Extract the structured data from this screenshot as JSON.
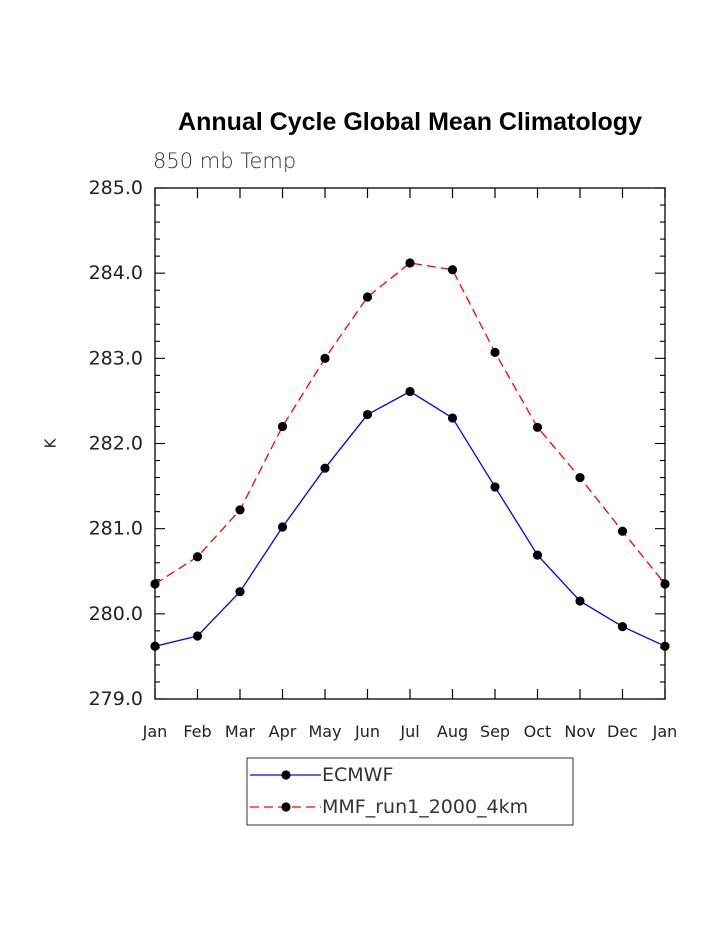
{
  "chart_data": {
    "type": "line",
    "title": "Annual Cycle Global Mean Climatology",
    "subtitle": "850 mb Temp",
    "xlabel": "",
    "ylabel": "K",
    "categories": [
      "Jan",
      "Feb",
      "Mar",
      "Apr",
      "May",
      "Jun",
      "Jul",
      "Aug",
      "Sep",
      "Oct",
      "Nov",
      "Dec",
      "Jan"
    ],
    "yticks": [
      "279.0",
      "280.0",
      "281.0",
      "282.0",
      "283.0",
      "284.0",
      "285.0"
    ],
    "ylim": [
      279.0,
      285.0
    ],
    "grid": false,
    "legend_position": "bottom",
    "series": [
      {
        "name": "ECMWF",
        "color": "#0000ff",
        "dash": "solid",
        "marker": "filled-circle",
        "values": [
          279.62,
          279.74,
          280.26,
          281.02,
          281.71,
          282.34,
          282.61,
          282.3,
          281.49,
          280.69,
          280.15,
          279.85,
          279.62
        ]
      },
      {
        "name": "MMF_run1_2000_4km",
        "color": "#ff0000",
        "dash": "dashed",
        "marker": "filled-circle",
        "values": [
          280.35,
          280.67,
          281.22,
          282.2,
          283.0,
          283.72,
          284.12,
          284.04,
          283.07,
          282.19,
          281.6,
          280.97,
          280.35
        ]
      }
    ]
  }
}
